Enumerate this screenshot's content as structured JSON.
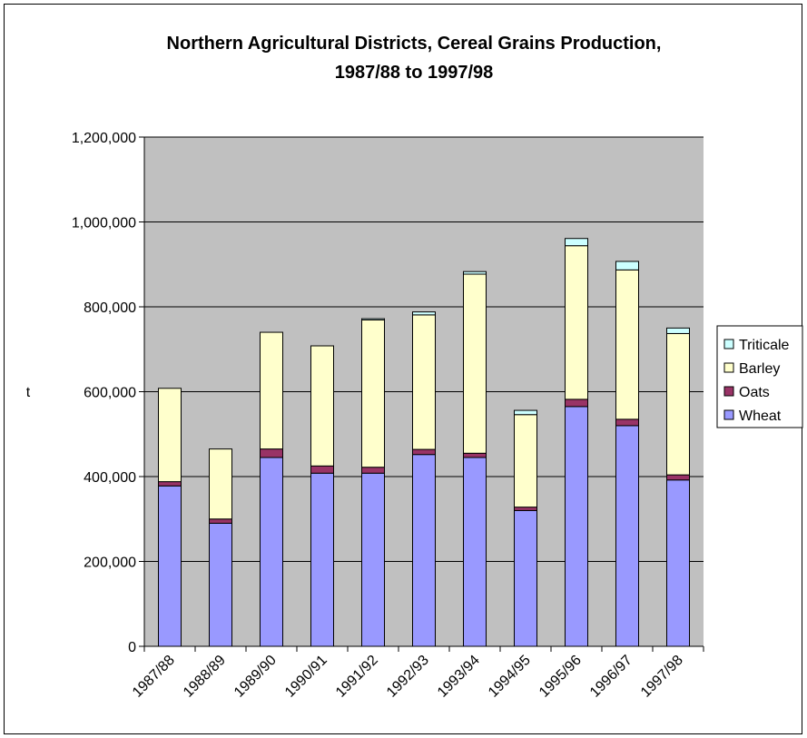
{
  "chart_data": {
    "type": "bar",
    "stacked": true,
    "title": "Northern Agricultural Districts, Cereal Grains Production,",
    "subtitle": "1987/88 to 1997/98",
    "xlabel": "",
    "ylabel": "t",
    "ylim": [
      0,
      1200000
    ],
    "yticks": [
      "0",
      "200,000",
      "400,000",
      "600,000",
      "800,000",
      "1,000,000",
      "1,200,000"
    ],
    "categories": [
      "1987/88",
      "1988/89",
      "1989/90",
      "1990/91",
      "1991/92",
      "1992/93",
      "1993/94",
      "1994/95",
      "1995/96",
      "1996/97",
      "1997/98"
    ],
    "series": [
      {
        "name": "Wheat",
        "color": "#9999ff",
        "values": [
          378000,
          290000,
          445000,
          408000,
          408000,
          452000,
          445000,
          320000,
          565000,
          520000,
          392000
        ]
      },
      {
        "name": "Oats",
        "color": "#993366",
        "values": [
          10000,
          10000,
          20000,
          17000,
          14000,
          12000,
          10000,
          8000,
          17000,
          15000,
          12000
        ]
      },
      {
        "name": "Barley",
        "color": "#ffffcc",
        "values": [
          220000,
          165000,
          275000,
          283000,
          347000,
          317000,
          422000,
          218000,
          362000,
          352000,
          333000
        ]
      },
      {
        "name": "Triticale",
        "color": "#ccffff",
        "values": [
          0,
          0,
          0,
          0,
          3000,
          7000,
          6000,
          10000,
          17000,
          20000,
          13000
        ]
      }
    ],
    "legend_position": "right",
    "grid": true,
    "plot_background": "#c0c0c0"
  }
}
